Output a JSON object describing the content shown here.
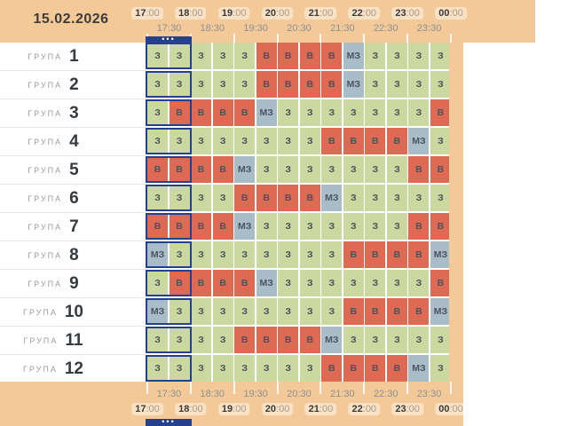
{
  "date": "15.02.2026",
  "timeline": {
    "hours": [
      "17:00",
      "18:00",
      "19:00",
      "20:00",
      "21:00",
      "22:00",
      "23:00",
      "00:00"
    ],
    "half_hours": [
      "17:30",
      "18:30",
      "19:30",
      "20:30",
      "21:30",
      "22:30",
      "23:30"
    ]
  },
  "selected_range": {
    "start": "17:00",
    "end": "18:00",
    "handle_dots": "•••"
  },
  "group_label": "ГРУПА",
  "groups": [
    {
      "number": "1",
      "slots": [
        "З",
        "З",
        "З",
        "З",
        "З",
        "В",
        "В",
        "В",
        "В",
        "МЗ",
        "З",
        "З",
        "З",
        "З"
      ]
    },
    {
      "number": "2",
      "slots": [
        "З",
        "З",
        "З",
        "З",
        "З",
        "В",
        "В",
        "В",
        "В",
        "МЗ",
        "З",
        "З",
        "З",
        "З"
      ]
    },
    {
      "number": "3",
      "slots": [
        "З",
        "В",
        "В",
        "В",
        "В",
        "МЗ",
        "З",
        "З",
        "З",
        "З",
        "З",
        "З",
        "З",
        "В"
      ]
    },
    {
      "number": "4",
      "slots": [
        "З",
        "З",
        "З",
        "З",
        "З",
        "З",
        "З",
        "З",
        "В",
        "В",
        "В",
        "В",
        "МЗ",
        "З"
      ]
    },
    {
      "number": "5",
      "slots": [
        "В",
        "В",
        "В",
        "В",
        "МЗ",
        "З",
        "З",
        "З",
        "З",
        "З",
        "З",
        "З",
        "В",
        "В"
      ]
    },
    {
      "number": "6",
      "slots": [
        "З",
        "З",
        "З",
        "З",
        "В",
        "В",
        "В",
        "В",
        "МЗ",
        "З",
        "З",
        "З",
        "З",
        "З"
      ]
    },
    {
      "number": "7",
      "slots": [
        "В",
        "В",
        "В",
        "В",
        "МЗ",
        "З",
        "З",
        "З",
        "З",
        "З",
        "З",
        "З",
        "В",
        "В"
      ]
    },
    {
      "number": "8",
      "slots": [
        "МЗ",
        "З",
        "З",
        "З",
        "З",
        "З",
        "З",
        "З",
        "З",
        "В",
        "В",
        "В",
        "В",
        "МЗ"
      ]
    },
    {
      "number": "9",
      "slots": [
        "З",
        "В",
        "В",
        "В",
        "В",
        "МЗ",
        "З",
        "З",
        "З",
        "З",
        "З",
        "З",
        "З",
        "В"
      ]
    },
    {
      "number": "10",
      "slots": [
        "МЗ",
        "З",
        "З",
        "З",
        "З",
        "З",
        "З",
        "З",
        "З",
        "В",
        "В",
        "В",
        "В",
        "МЗ"
      ]
    },
    {
      "number": "11",
      "slots": [
        "З",
        "З",
        "З",
        "З",
        "В",
        "В",
        "В",
        "В",
        "МЗ",
        "З",
        "З",
        "З",
        "З",
        "З"
      ]
    },
    {
      "number": "12",
      "slots": [
        "З",
        "З",
        "З",
        "З",
        "З",
        "З",
        "З",
        "З",
        "В",
        "В",
        "В",
        "В",
        "МЗ",
        "З"
      ]
    }
  ],
  "slot_colors": {
    "З": "#cbd8a0",
    "В": "#de6a54",
    "МЗ": "#a9bdc9"
  },
  "colors": {
    "tan": "#f4c998",
    "navy": "#24408f",
    "letter": "#4a545c",
    "hour_strong": "#3a3a3a",
    "hour_weak": "#a89a89",
    "half_label": "#8b9095",
    "group_label": "#959ba3",
    "group_number": "#333b41",
    "row_divider": "#e6e6e6",
    "pill": "rgba(255,255,255,0.45)",
    "panel_bg": "#ffffff"
  }
}
